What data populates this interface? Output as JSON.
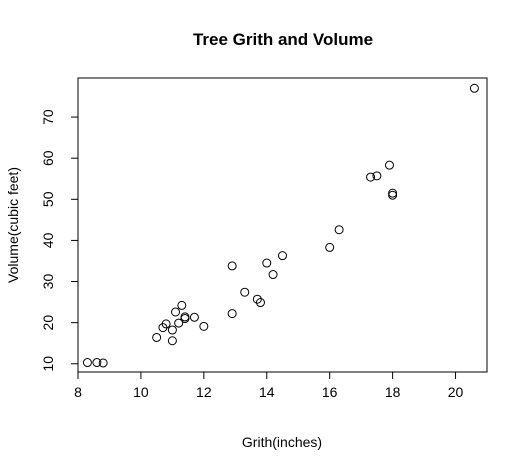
{
  "chart_data": {
    "type": "scatter",
    "title": "Tree Grith and Volume",
    "xlabel": "Grith(inches)",
    "ylabel": "Volume(cubic feet)",
    "xlim": [
      8.0,
      21.0
    ],
    "ylim": [
      8.0,
      79.5
    ],
    "xticks": [
      8,
      10,
      12,
      14,
      16,
      18,
      20
    ],
    "yticks": [
      10,
      20,
      30,
      40,
      50,
      60,
      70
    ],
    "grid": false,
    "marker": "open-circle",
    "point_color": "#000000",
    "x": [
      8.3,
      8.6,
      8.8,
      10.5,
      10.7,
      10.8,
      11.0,
      11.0,
      11.1,
      11.2,
      11.3,
      11.4,
      11.4,
      11.7,
      12.0,
      12.9,
      12.9,
      13.3,
      13.7,
      13.8,
      14.0,
      14.2,
      14.5,
      16.0,
      16.3,
      17.3,
      17.5,
      17.9,
      18.0,
      18.0,
      20.6
    ],
    "y": [
      10.3,
      10.3,
      10.2,
      16.4,
      18.8,
      19.7,
      15.6,
      18.2,
      22.6,
      19.9,
      24.2,
      21.0,
      21.4,
      21.3,
      19.1,
      22.2,
      33.8,
      27.4,
      25.7,
      24.9,
      34.5,
      31.7,
      36.3,
      38.3,
      42.6,
      55.4,
      55.7,
      58.3,
      51.5,
      51.0,
      77.0
    ]
  }
}
